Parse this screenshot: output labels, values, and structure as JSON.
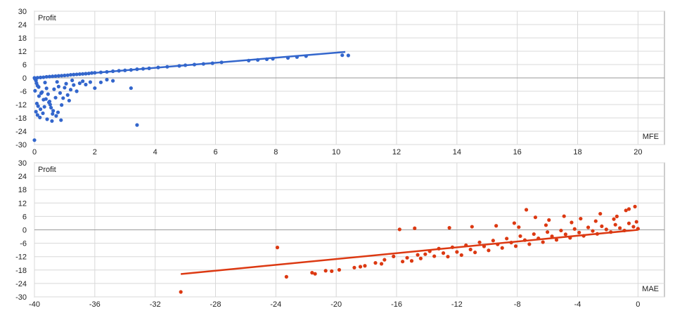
{
  "colors": {
    "grid": "#d8d8d8",
    "axis": "#9a9a9a",
    "mfe": "#3366cc",
    "mae": "#dc3912"
  },
  "chart_data": [
    {
      "type": "scatter",
      "name": "mfe-chart",
      "ylabel": "Profit",
      "xlabel": "MFE",
      "xlim": [
        0,
        20
      ],
      "ylim": [
        -30,
        30
      ],
      "xticks": [
        0,
        2,
        4,
        6,
        8,
        10,
        12,
        14,
        16,
        18,
        20
      ],
      "yticks": [
        30,
        24,
        18,
        12,
        6,
        0,
        -6,
        -12,
        -18,
        -24,
        -30
      ],
      "grid": true,
      "trendline": {
        "x1": 0,
        "y1": 0,
        "x2": 10.3,
        "y2": 11.7
      },
      "points": [
        [
          0.0,
          0.0
        ],
        [
          0.05,
          -1.2
        ],
        [
          0.1,
          -3.5
        ],
        [
          0.02,
          -5.8
        ],
        [
          0.15,
          -8.2
        ],
        [
          0.08,
          -11.5
        ],
        [
          0.2,
          -14.1
        ],
        [
          0.25,
          -6.4
        ],
        [
          0.3,
          -9.8
        ],
        [
          0.12,
          -12.7
        ],
        [
          0.35,
          -2.1
        ],
        [
          0.4,
          -4.7
        ],
        [
          0.45,
          -7.3
        ],
        [
          0.5,
          -10.6
        ],
        [
          0.55,
          -13.4
        ],
        [
          0.6,
          -16.2
        ],
        [
          0.65,
          -5.1
        ],
        [
          0.7,
          -8.9
        ],
        [
          0.75,
          -1.8
        ],
        [
          0.8,
          -3.9
        ],
        [
          0.85,
          -6.8
        ],
        [
          0.9,
          -12.2
        ],
        [
          0.95,
          -9.1
        ],
        [
          1.0,
          -4.4
        ],
        [
          1.05,
          -2.6
        ],
        [
          1.1,
          -7.7
        ],
        [
          1.15,
          -10.2
        ],
        [
          1.2,
          -5.3
        ],
        [
          1.25,
          -1.1
        ],
        [
          1.3,
          -3.2
        ],
        [
          0.18,
          -17.8
        ],
        [
          0.28,
          -15.9
        ],
        [
          0.42,
          -18.6
        ],
        [
          0.58,
          -19.4
        ],
        [
          0.72,
          -17.1
        ],
        [
          0.88,
          -19.0
        ],
        [
          0.33,
          -13.0
        ],
        [
          0.48,
          -11.0
        ],
        [
          0.62,
          -14.8
        ],
        [
          0.78,
          -15.5
        ],
        [
          1.4,
          -6.0
        ],
        [
          1.5,
          -2.4
        ],
        [
          1.6,
          -1.5
        ],
        [
          1.7,
          -3.0
        ],
        [
          2.0,
          -4.6
        ],
        [
          2.2,
          -2.0
        ],
        [
          0.05,
          -15.2
        ],
        [
          0.1,
          -16.7
        ],
        [
          0.0,
          -28.0
        ],
        [
          3.4,
          -21.2
        ],
        [
          3.2,
          -4.6
        ],
        [
          2.4,
          -0.8
        ],
        [
          2.6,
          -1.3
        ],
        [
          1.85,
          -1.9
        ],
        [
          0.02,
          -0.5
        ],
        [
          0.07,
          -2.4
        ],
        [
          0.14,
          -4.1
        ],
        [
          0.22,
          -6.9
        ],
        [
          0.38,
          -9.5
        ],
        [
          0.52,
          -12.0
        ],
        [
          0.1,
          0.1
        ],
        [
          0.2,
          0.2
        ],
        [
          0.3,
          0.3
        ],
        [
          0.4,
          0.5
        ],
        [
          0.5,
          0.6
        ],
        [
          0.6,
          0.7
        ],
        [
          0.7,
          0.8
        ],
        [
          0.8,
          0.9
        ],
        [
          0.9,
          1.0
        ],
        [
          1.0,
          1.1
        ],
        [
          1.1,
          1.2
        ],
        [
          1.2,
          1.4
        ],
        [
          1.3,
          1.5
        ],
        [
          1.4,
          1.6
        ],
        [
          1.5,
          1.7
        ],
        [
          1.6,
          1.8
        ],
        [
          1.7,
          1.9
        ],
        [
          1.8,
          2.0
        ],
        [
          1.9,
          2.2
        ],
        [
          2.0,
          2.3
        ],
        [
          2.2,
          2.5
        ],
        [
          2.4,
          2.7
        ],
        [
          2.6,
          3.0
        ],
        [
          2.8,
          3.2
        ],
        [
          3.0,
          3.4
        ],
        [
          3.2,
          3.6
        ],
        [
          3.4,
          3.9
        ],
        [
          3.6,
          4.1
        ],
        [
          3.8,
          4.3
        ],
        [
          4.1,
          4.7
        ],
        [
          4.4,
          5.0
        ],
        [
          4.8,
          5.4
        ],
        [
          5.0,
          5.7
        ],
        [
          5.3,
          6.0
        ],
        [
          5.6,
          6.3
        ],
        [
          5.9,
          6.6
        ],
        [
          6.2,
          7.0
        ],
        [
          7.1,
          7.8
        ],
        [
          7.4,
          8.1
        ],
        [
          7.7,
          8.4
        ],
        [
          7.9,
          8.6
        ],
        [
          8.4,
          9.0
        ],
        [
          8.7,
          9.4
        ],
        [
          9.0,
          9.8
        ],
        [
          10.2,
          10.2
        ],
        [
          10.4,
          10.1
        ]
      ]
    },
    {
      "type": "scatter",
      "name": "mae-chart",
      "ylabel": "Profit",
      "xlabel": "MAE",
      "xlim": [
        -40,
        0
      ],
      "ylim": [
        -30,
        30
      ],
      "xticks": [
        -40,
        -36,
        -32,
        -28,
        -24,
        -20,
        -16,
        -12,
        -8,
        -4,
        0
      ],
      "yticks": [
        30,
        24,
        18,
        12,
        6,
        0,
        -6,
        -12,
        -18,
        -24,
        -30
      ],
      "grid": true,
      "trendline": {
        "x1": -30.3,
        "y1": -19.8,
        "x2": 0,
        "y2": 0
      },
      "points": [
        [
          -30.3,
          -27.8
        ],
        [
          -23.9,
          -7.9
        ],
        [
          -23.3,
          -21.0
        ],
        [
          -21.6,
          -19.2
        ],
        [
          -21.4,
          -19.7
        ],
        [
          -20.7,
          -18.3
        ],
        [
          -20.3,
          -18.5
        ],
        [
          -19.8,
          -17.9
        ],
        [
          -18.8,
          -16.9
        ],
        [
          -18.4,
          -16.5
        ],
        [
          -18.1,
          -16.1
        ],
        [
          -17.4,
          -14.8
        ],
        [
          -17.0,
          -15.2
        ],
        [
          -16.8,
          -13.4
        ],
        [
          -16.2,
          -11.9
        ],
        [
          -15.8,
          0.2
        ],
        [
          -15.6,
          -14.2
        ],
        [
          -15.3,
          -12.5
        ],
        [
          -15.0,
          -13.9
        ],
        [
          -14.6,
          -11.2
        ],
        [
          -14.4,
          -12.8
        ],
        [
          -14.1,
          -10.9
        ],
        [
          -13.8,
          -9.6
        ],
        [
          -13.5,
          -11.8
        ],
        [
          -13.2,
          -8.4
        ],
        [
          -12.9,
          -10.4
        ],
        [
          -12.6,
          -12.0
        ],
        [
          -12.3,
          -7.8
        ],
        [
          -12.0,
          -9.9
        ],
        [
          -11.7,
          -11.3
        ],
        [
          -11.4,
          -6.9
        ],
        [
          -11.1,
          -8.8
        ],
        [
          -10.8,
          -10.1
        ],
        [
          -10.5,
          -5.6
        ],
        [
          -10.2,
          -7.4
        ],
        [
          -9.9,
          -9.2
        ],
        [
          -9.6,
          -4.8
        ],
        [
          -9.3,
          -6.5
        ],
        [
          -9.0,
          -8.1
        ],
        [
          -8.7,
          -3.9
        ],
        [
          -8.4,
          -5.7
        ],
        [
          -8.1,
          -7.3
        ],
        [
          -7.8,
          -2.8
        ],
        [
          -7.5,
          -4.6
        ],
        [
          -7.2,
          -6.4
        ],
        [
          -6.9,
          -1.9
        ],
        [
          -6.6,
          -3.8
        ],
        [
          -6.3,
          -5.5
        ],
        [
          -6.0,
          -1.0
        ],
        [
          -5.7,
          -2.9
        ],
        [
          -5.4,
          -4.5
        ],
        [
          -5.1,
          -0.3
        ],
        [
          -4.8,
          -2.0
        ],
        [
          -4.5,
          -3.6
        ],
        [
          -4.2,
          0.4
        ],
        [
          -3.9,
          -1.2
        ],
        [
          -3.6,
          -2.7
        ],
        [
          -3.3,
          1.1
        ],
        [
          -3.0,
          -0.5
        ],
        [
          -2.7,
          -1.8
        ],
        [
          -2.4,
          1.6
        ],
        [
          -2.1,
          0.2
        ],
        [
          -1.8,
          -1.0
        ],
        [
          -1.5,
          2.3
        ],
        [
          -1.2,
          0.8
        ],
        [
          -0.9,
          -0.3
        ],
        [
          -0.6,
          2.9
        ],
        [
          -0.3,
          1.4
        ],
        [
          0.0,
          0.5
        ],
        [
          -0.1,
          3.6
        ],
        [
          -14.8,
          0.7
        ],
        [
          -12.5,
          0.9
        ],
        [
          -11.0,
          1.4
        ],
        [
          -9.4,
          1.8
        ],
        [
          -8.2,
          3.0
        ],
        [
          -7.4,
          9.0
        ],
        [
          -6.8,
          5.6
        ],
        [
          -5.9,
          4.4
        ],
        [
          -4.9,
          6.1
        ],
        [
          -3.8,
          5.0
        ],
        [
          -2.5,
          7.2
        ],
        [
          -1.4,
          6.0
        ],
        [
          -0.8,
          8.7
        ],
        [
          -0.2,
          10.4
        ],
        [
          -0.6,
          9.3
        ],
        [
          -1.6,
          4.8
        ],
        [
          -2.8,
          3.9
        ],
        [
          -4.4,
          3.3
        ],
        [
          -6.1,
          2.1
        ],
        [
          -7.9,
          1.2
        ]
      ]
    }
  ]
}
